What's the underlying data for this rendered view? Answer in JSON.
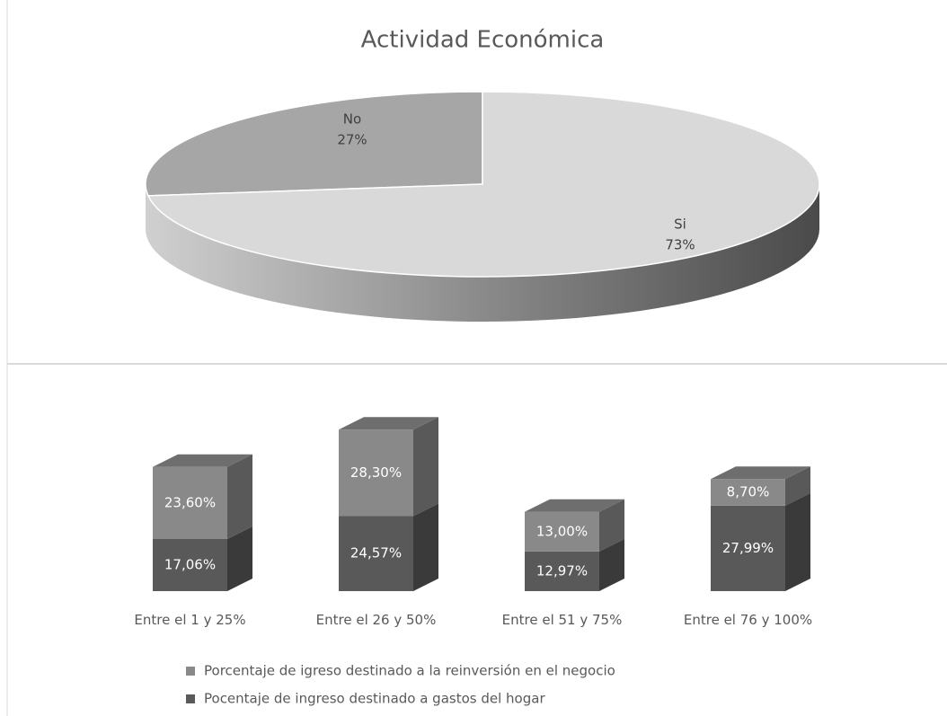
{
  "chart_data": [
    {
      "type": "pie",
      "title": "Actividad Económica",
      "categories": [
        "No",
        "Si"
      ],
      "values": [
        27,
        73
      ],
      "value_labels": [
        "27%",
        "73%"
      ],
      "colors": [
        "#a6a6a6",
        "#d9d9d9"
      ]
    },
    {
      "type": "bar",
      "stacked": true,
      "categories": [
        "Entre el 1 y 25%",
        "Entre el 26 y 50%",
        "Entre el 51 y 75%",
        "Entre el 76 y 100%"
      ],
      "series": [
        {
          "name": "Pocentaje de ingreso destinado a gastos del hogar",
          "color": "#595959",
          "values": [
            17.06,
            24.57,
            12.97,
            27.99
          ],
          "value_labels": [
            "17,06%",
            "24,57%",
            "12,97%",
            "27,99%"
          ]
        },
        {
          "name": "Porcentaje de igreso destinado a la reinversión en el negocio",
          "color": "#898989",
          "values": [
            23.6,
            28.3,
            13.0,
            8.7
          ],
          "value_labels": [
            "23,60%",
            "28,30%",
            "13,00%",
            "8,70%"
          ]
        }
      ]
    }
  ]
}
